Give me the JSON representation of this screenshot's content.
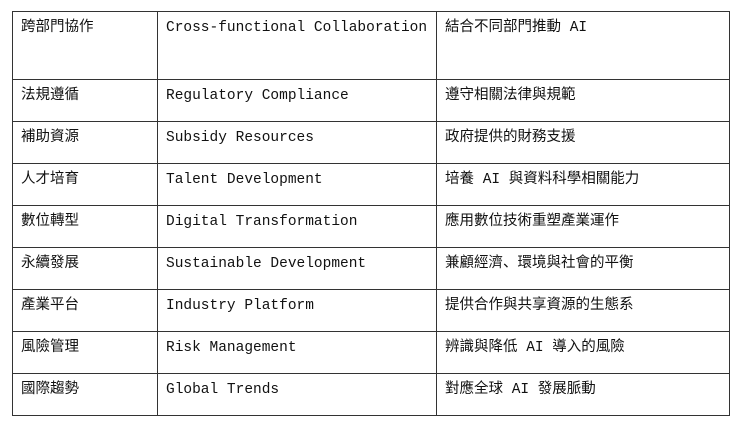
{
  "table": {
    "rows": [
      [
        "跨部門協作",
        "Cross-functional Collaboration",
        "結合不同部門推動 AI"
      ],
      [
        "法規遵循",
        "Regulatory Compliance",
        "遵守相關法律與規範"
      ],
      [
        "補助資源",
        "Subsidy Resources",
        "政府提供的財務支援"
      ],
      [
        "人才培育",
        "Talent Development",
        "培養 AI 與資料科學相關能力"
      ],
      [
        "數位轉型",
        "Digital Transformation",
        "應用數位技術重塑產業運作"
      ],
      [
        "永續發展",
        "Sustainable Development",
        "兼顧經濟、環境與社會的平衡"
      ],
      [
        "產業平台",
        "Industry Platform",
        "提供合作與共享資源的生態系"
      ],
      [
        "風險管理",
        "Risk Management",
        "辨識與降低 AI 導入的風險"
      ],
      [
        "國際趨勢",
        "Global Trends",
        "對應全球 AI 發展脈動"
      ]
    ]
  }
}
